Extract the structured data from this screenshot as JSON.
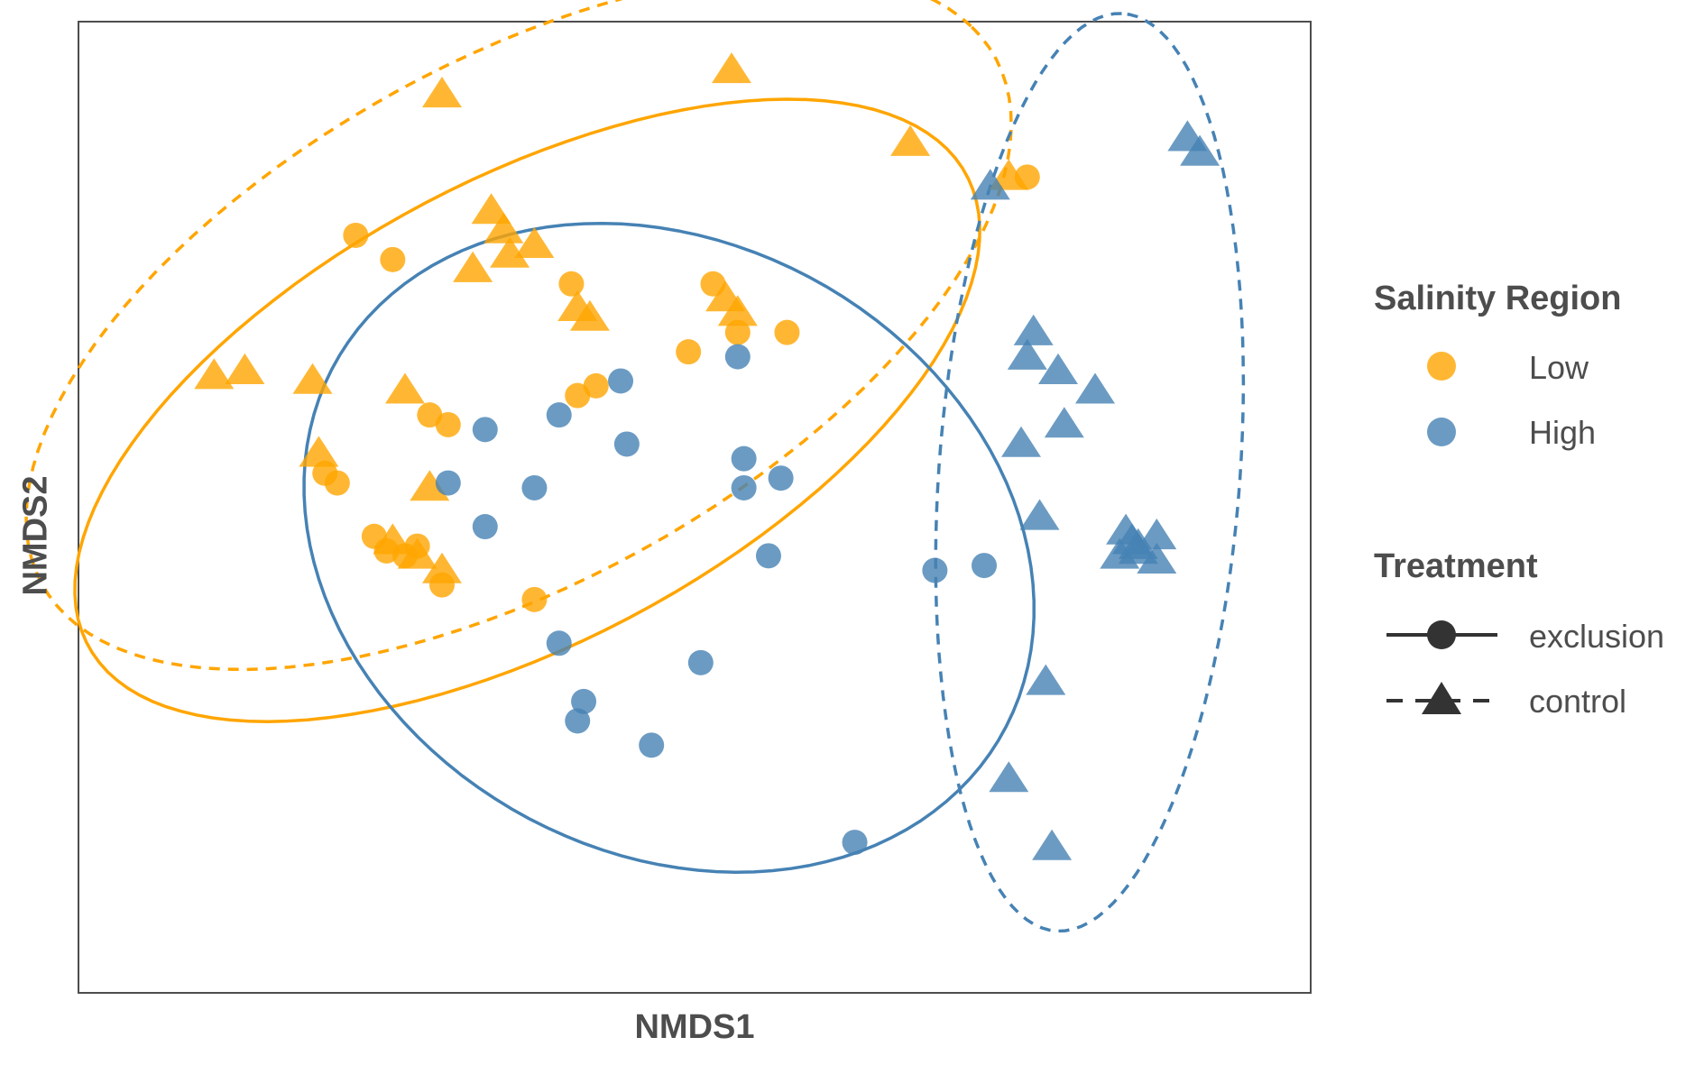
{
  "chart_data": {
    "type": "scatter",
    "xlabel": "NMDS1",
    "ylabel": "NMDS2",
    "xlim": [
      -1.0,
      1.0
    ],
    "ylim": [
      -1.0,
      1.0
    ],
    "grid": false,
    "legend_placement": "right",
    "colors": {
      "Low": "#FFA500",
      "High": "#4682B4"
    },
    "legend": {
      "color_title": "Salinity Region",
      "color_entries": [
        {
          "label": "Low"
        },
        {
          "label": "High"
        }
      ],
      "shape_title": "Treatment",
      "shape_entries": [
        {
          "label": "exclusion"
        },
        {
          "label": "control"
        }
      ]
    },
    "series": [
      {
        "region": "Low",
        "treatment": "exclusion",
        "x": [
          -0.55,
          -0.49,
          -0.2,
          -0.01,
          0.07,
          -0.19,
          -0.16,
          -0.43,
          -0.4,
          -0.6,
          -0.58,
          -0.52,
          -0.5,
          -0.47,
          -0.45,
          -0.41,
          -0.26,
          0.03,
          0.15,
          0.54
        ],
        "y": [
          0.56,
          0.51,
          0.46,
          0.32,
          0.36,
          0.23,
          0.25,
          0.19,
          0.17,
          0.07,
          0.05,
          -0.06,
          -0.09,
          -0.1,
          -0.08,
          -0.16,
          -0.19,
          0.46,
          0.36,
          0.68
        ]
      },
      {
        "region": "Low",
        "treatment": "control",
        "x": [
          -0.41,
          0.06,
          -0.26,
          0.35,
          -0.78,
          -0.73,
          -0.62,
          -0.33,
          -0.31,
          -0.36,
          -0.19,
          -0.17,
          0.05,
          0.07,
          -0.47,
          -0.43,
          -0.45,
          -0.41,
          -0.49,
          -0.61,
          0.51,
          -0.3
        ],
        "y": [
          0.85,
          0.9,
          0.54,
          0.75,
          0.27,
          0.28,
          0.26,
          0.61,
          0.57,
          0.49,
          0.41,
          0.39,
          0.43,
          0.4,
          0.24,
          0.04,
          -0.1,
          -0.13,
          -0.07,
          0.11,
          0.68,
          0.52
        ]
      },
      {
        "region": "High",
        "treatment": "exclusion",
        "x": [
          0.07,
          -0.12,
          -0.22,
          -0.34,
          -0.26,
          0.08,
          0.14,
          -0.22,
          0.01,
          -0.07,
          -0.18,
          -0.19,
          -0.34,
          -0.4,
          0.12,
          0.26,
          0.39,
          0.47,
          0.08,
          -0.11
        ],
        "y": [
          0.31,
          0.26,
          0.19,
          0.16,
          0.04,
          0.1,
          0.06,
          -0.28,
          -0.32,
          -0.49,
          -0.4,
          -0.44,
          -0.04,
          0.05,
          -0.1,
          -0.69,
          -0.13,
          -0.12,
          0.04,
          0.13
        ]
      },
      {
        "region": "High",
        "treatment": "control",
        "x": [
          0.8,
          0.82,
          0.48,
          0.55,
          0.54,
          0.65,
          0.59,
          0.6,
          0.53,
          0.56,
          0.75,
          0.75,
          0.72,
          0.7,
          0.72,
          0.71,
          0.69,
          0.57,
          0.51,
          0.58
        ],
        "y": [
          0.76,
          0.73,
          0.66,
          0.36,
          0.31,
          0.24,
          0.28,
          0.17,
          0.13,
          -0.02,
          -0.06,
          -0.11,
          -0.08,
          -0.05,
          -0.09,
          -0.07,
          -0.1,
          -0.36,
          -0.56,
          -0.7
        ]
      }
    ]
  }
}
